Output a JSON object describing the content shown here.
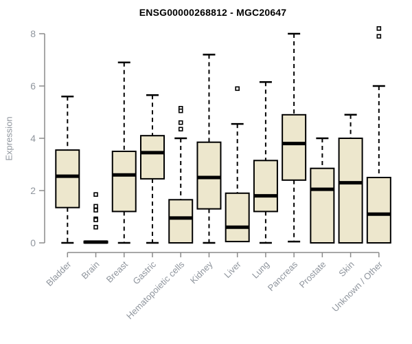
{
  "chart_data": {
    "type": "boxplot",
    "title": "ENSG00000268812 - MGC20647",
    "ylabel": "Expression",
    "xlabel": "",
    "ylim": [
      0,
      8.3
    ],
    "yticks": [
      0,
      2,
      4,
      6,
      8
    ],
    "grid": false,
    "legend": null,
    "colors": {
      "box_fill": "#EDE7CD",
      "box_stroke": "#000000",
      "median": "#000000",
      "whisker": "#000000",
      "axis_line": "#8a8a8a",
      "tick_label": "#8f959d",
      "title": "#000000"
    },
    "categories": [
      "Bladder",
      "Brain",
      "Breast",
      "Gastric",
      "Hematopoietic cells",
      "Kidney",
      "Liver",
      "Lung",
      "Pancreas",
      "Prostate",
      "Skin",
      "Unknown / Other"
    ],
    "series": [
      {
        "category": "Bladder",
        "whisker_low": 0,
        "q1": 1.35,
        "median": 2.55,
        "q3": 3.55,
        "whisker_high": 5.6,
        "outliers": []
      },
      {
        "category": "Brain",
        "whisker_low": 0,
        "q1": 0,
        "median": 0.03,
        "q3": 0.06,
        "whisker_high": 0.06,
        "outliers": [
          1.85,
          1.4,
          1.25,
          0.92,
          0.88,
          0.6
        ]
      },
      {
        "category": "Breast",
        "whisker_low": 0,
        "q1": 1.2,
        "median": 2.6,
        "q3": 3.5,
        "whisker_high": 6.9,
        "outliers": []
      },
      {
        "category": "Gastric",
        "whisker_low": 0,
        "q1": 2.45,
        "median": 3.45,
        "q3": 4.1,
        "whisker_high": 5.65,
        "outliers": []
      },
      {
        "category": "Hematopoietic cells",
        "whisker_low": 0,
        "q1": 0,
        "median": 0.95,
        "q3": 1.65,
        "whisker_high": 4.0,
        "outliers": [
          5.15,
          5.05,
          4.6,
          4.35
        ]
      },
      {
        "category": "Kidney",
        "whisker_low": 0,
        "q1": 1.3,
        "median": 2.5,
        "q3": 3.85,
        "whisker_high": 7.2,
        "outliers": []
      },
      {
        "category": "Liver",
        "whisker_low": 0.05,
        "q1": 0.05,
        "median": 0.6,
        "q3": 1.9,
        "whisker_high": 4.55,
        "outliers": [
          5.9
        ]
      },
      {
        "category": "Lung",
        "whisker_low": 0,
        "q1": 1.2,
        "median": 1.8,
        "q3": 3.15,
        "whisker_high": 6.15,
        "outliers": []
      },
      {
        "category": "Pancreas",
        "whisker_low": 0.05,
        "q1": 2.4,
        "median": 3.8,
        "q3": 4.9,
        "whisker_high": 8.0,
        "outliers": []
      },
      {
        "category": "Prostate",
        "whisker_low": 0,
        "q1": 0,
        "median": 2.05,
        "q3": 2.85,
        "whisker_high": 4.0,
        "outliers": []
      },
      {
        "category": "Skin",
        "whisker_low": 0,
        "q1": 0,
        "median": 2.3,
        "q3": 4.0,
        "whisker_high": 4.9,
        "outliers": []
      },
      {
        "category": "Unknown / Other",
        "whisker_low": 0,
        "q1": 0,
        "median": 1.1,
        "q3": 2.5,
        "whisker_high": 6.0,
        "outliers": [
          7.9,
          8.2
        ]
      }
    ]
  }
}
